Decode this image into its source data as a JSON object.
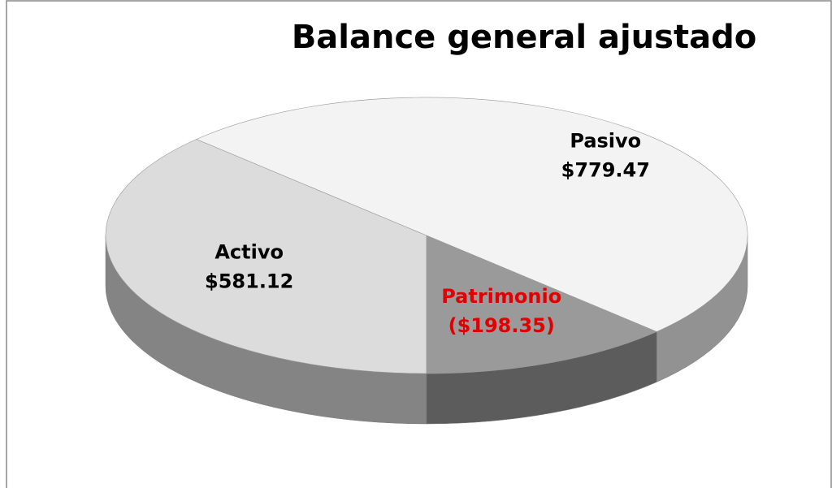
{
  "chart_data": {
    "type": "pie",
    "title": "Balance general ajustado",
    "categories": [
      "Activo",
      "Pasivo",
      "Patrimonio"
    ],
    "values": [
      581.12,
      779.47,
      -198.35
    ],
    "value_labels": [
      "$581.12",
      "$779.47",
      "($198.35)"
    ],
    "colors": [
      "#dcdcdc",
      "#f3f3f3",
      "#9a9a9a"
    ],
    "label_colors": [
      "#000000",
      "#000000",
      "#e00000"
    ]
  }
}
